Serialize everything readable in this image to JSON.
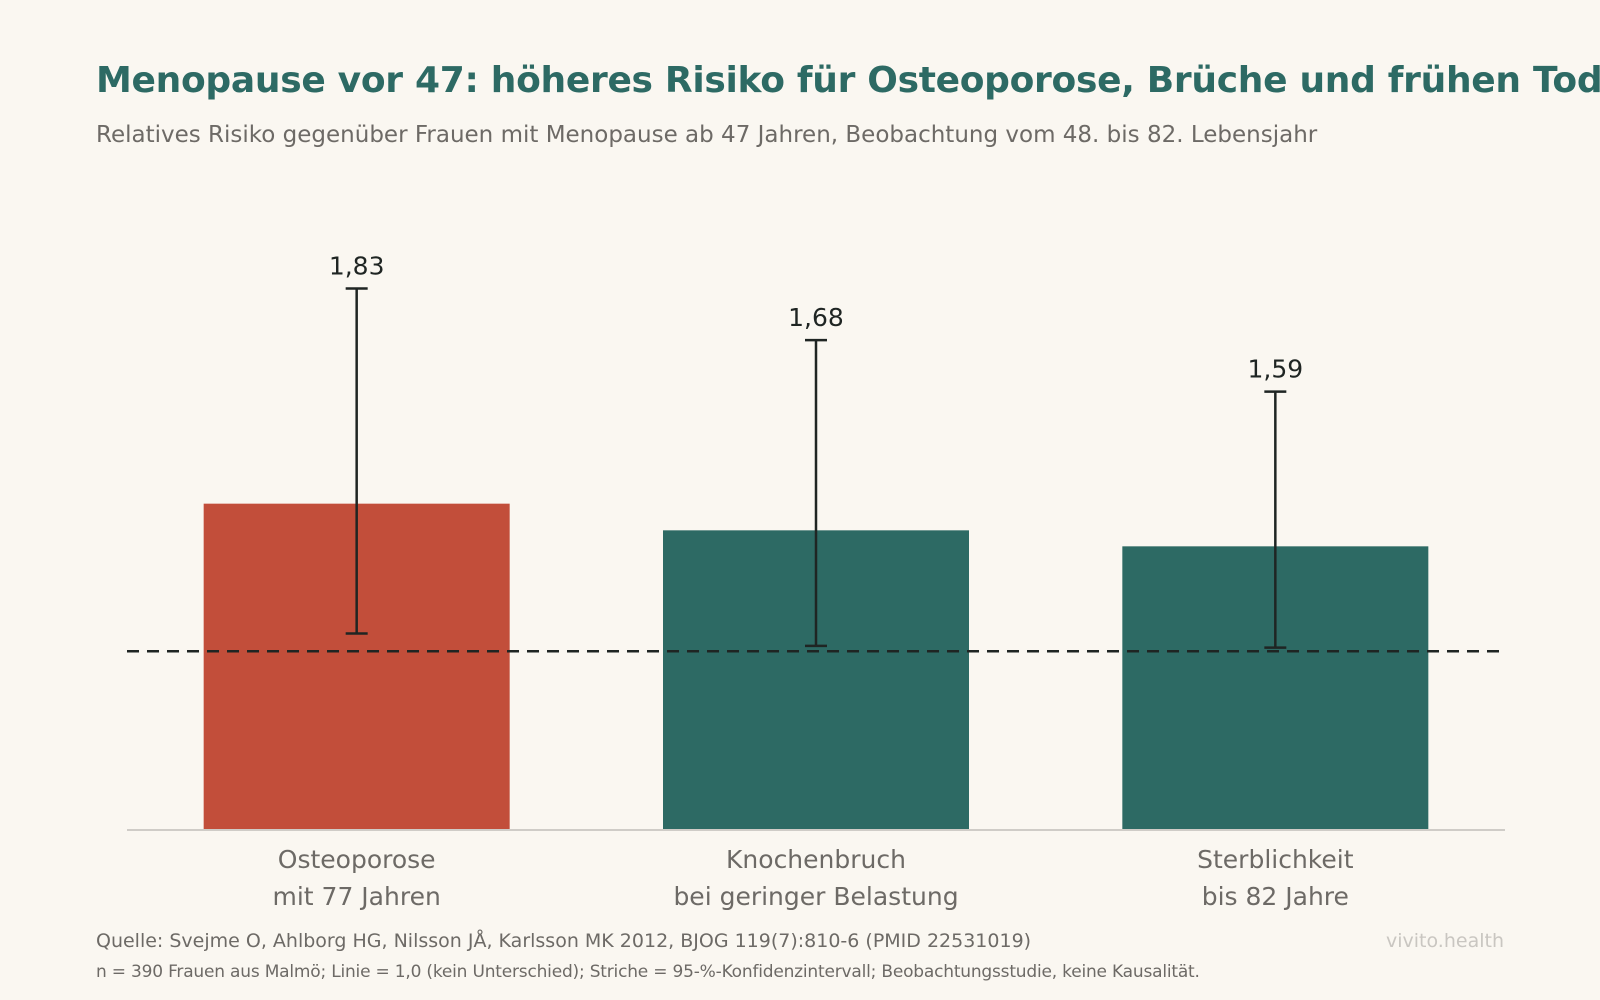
{
  "header": {
    "title": "Menopause vor 47: höheres Risiko für Osteoporose, Brüche und frühen Tod",
    "subtitle": "Relatives Risiko gegenüber Frauen mit Menopause ab 47 Jahren, Beobachtung vom 48. bis 82. Lebensjahr"
  },
  "footer": {
    "source": "Quelle: Svejme O, Ahlborg HG, Nilsson JÅ, Karlsson MK 2012, BJOG 119(7):810-6 (PMID 22531019)",
    "note": "n = 390 Frauen aus Malmö; Linie = 1,0 (kein Unterschied); Striche = 95-%-Konfidenzintervall; Beobachtungsstudie, keine Kausalität.",
    "brand": "vivito.health"
  },
  "colors": {
    "highlight": "#c24e3a",
    "bar": "#2d6a64",
    "title": "#2d6a64",
    "errorbar": "#1f2523",
    "reference": "#1f2523",
    "axis": "#cfccc7",
    "category_label": "#6d6a66",
    "value_label": "#1f2523"
  },
  "chart_data": {
    "type": "bar",
    "categories": [
      [
        "Osteoporose",
        "mit 77 Jahren"
      ],
      [
        "Knochenbruch",
        "bei geringer Belastung"
      ],
      [
        "Sterblichkeit",
        "bis 82 Jahre"
      ]
    ],
    "values": [
      1.83,
      1.68,
      1.59
    ],
    "value_labels": [
      "1,83",
      "1,68",
      "1,59"
    ],
    "ci_low": [
      1.1,
      1.03,
      1.02
    ],
    "ci_high": [
      3.04,
      2.75,
      2.46
    ],
    "highlight_index": 0,
    "reference_line": 1.0,
    "ylim": [
      0,
      3.6
    ],
    "grid": false,
    "legend": "none"
  }
}
